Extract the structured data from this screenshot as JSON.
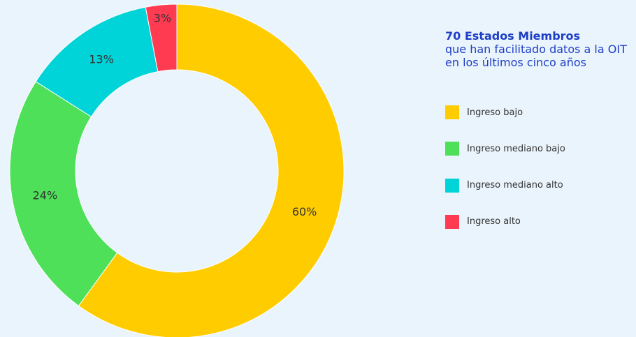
{
  "chart_data": {
    "type": "pie",
    "title": "70 Estados Miembros",
    "subtitle": "que han facilitado datos a la OIT en los últimos cinco años",
    "categories": [
      "Ingreso bajo",
      "Ingreso mediano bajo",
      "Ingreso mediano alto",
      "Ingreso alto"
    ],
    "values": [
      60,
      24,
      13,
      3
    ],
    "value_labels": [
      "60%",
      "24%",
      "13%",
      "3%"
    ],
    "colors": [
      "#ffcc00",
      "#4fe05a",
      "#00d4d8",
      "#ff3b52"
    ],
    "legend": "right"
  }
}
